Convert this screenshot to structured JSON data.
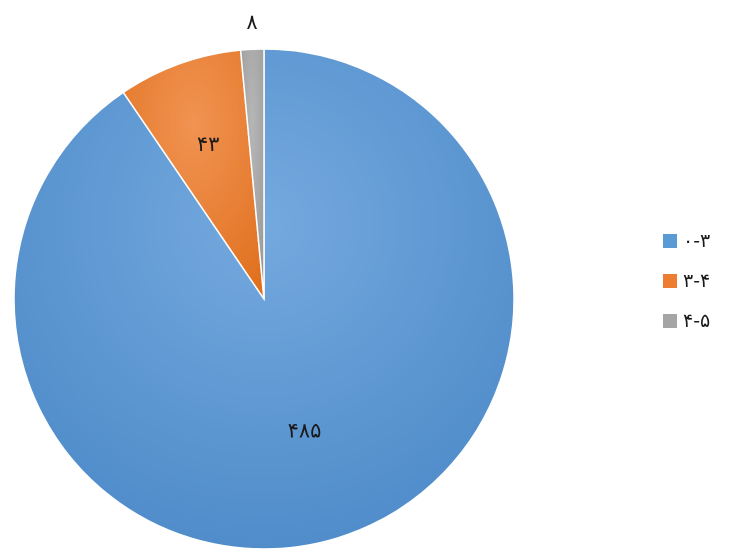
{
  "chart_data": {
    "type": "pie",
    "categories": [
      "۰-۳",
      "۳-۴",
      "۴-۵"
    ],
    "values": [
      485,
      43,
      8
    ],
    "value_labels": [
      "۴۸۵",
      "۴۳",
      "۸"
    ],
    "colors": [
      "#5B9BD5",
      "#ED7D31",
      "#A5A5A5"
    ],
    "start_angle_deg": 0,
    "direction": "clockwise",
    "legend_position": "right",
    "title": ""
  }
}
